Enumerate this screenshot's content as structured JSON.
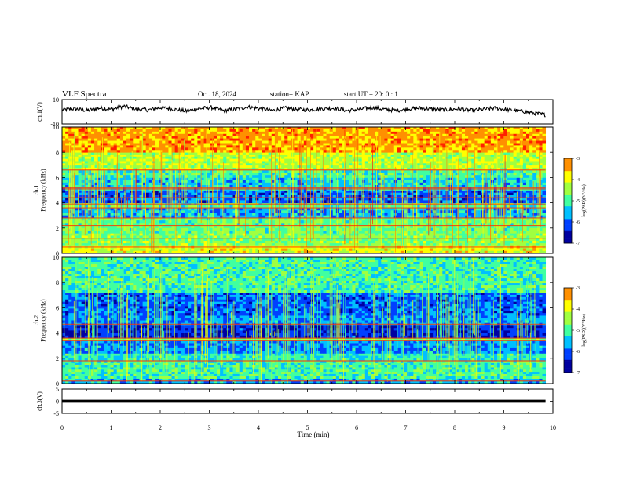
{
  "header": {
    "title": "VLF Spectra",
    "date": "Oct. 18, 2024",
    "station": "station= KAP",
    "start": "start  UT  =   20: 0  : 1"
  },
  "chart_data": [
    {
      "type": "line",
      "title": "",
      "ylabel": "ch.1(V)",
      "ylim": [
        -10,
        10
      ],
      "yticks": [
        10,
        -10
      ],
      "description_series": "time-domain waveform, noisy around ~2 V",
      "series": [
        {
          "values": [
            1.5,
            2.5,
            1.0,
            3.0,
            2.0,
            4.5,
            2.0,
            1.5,
            3.5,
            2.0,
            0.5,
            2.5,
            3.5,
            1.0,
            2.0,
            4.0,
            2.5,
            1.0,
            3.0,
            2.0,
            1.5,
            2.5,
            3.0,
            1.0,
            2.0,
            3.5,
            2.0,
            1.0,
            2.5,
            3.0,
            2.0,
            1.5,
            2.5,
            1.0,
            2.0,
            3.0,
            1.5,
            0.5,
            -1.0,
            -2.5
          ]
        }
      ]
    },
    {
      "type": "heatmap",
      "ylabel": "ch.1\nFrequency (kHz)",
      "ylim": [
        0,
        10
      ],
      "yticks": [
        0,
        2,
        4,
        6,
        8,
        10
      ],
      "xlim": [
        0,
        10
      ],
      "colorbar": {
        "label": "log(PSD)(V²/Hz)",
        "ticks": [
          -3,
          -4,
          -5,
          -6,
          -7
        ],
        "range": [
          -7,
          -3
        ]
      },
      "bands_khz": [
        {
          "from": 0.0,
          "to": 0.6,
          "level": -4.0
        },
        {
          "from": 0.6,
          "to": 1.6,
          "level": -4.6
        },
        {
          "from": 1.6,
          "to": 2.8,
          "level": -4.8
        },
        {
          "from": 2.8,
          "to": 3.6,
          "level": -5.6
        },
        {
          "from": 3.6,
          "to": 4.0,
          "level": -5.0
        },
        {
          "from": 4.0,
          "to": 5.0,
          "level": -6.0
        },
        {
          "from": 5.0,
          "to": 6.0,
          "level": -5.4
        },
        {
          "from": 6.0,
          "to": 6.6,
          "level": -5.0
        },
        {
          "from": 6.6,
          "to": 8.0,
          "level": -4.3
        },
        {
          "from": 8.0,
          "to": 10.0,
          "level": -3.4
        }
      ],
      "lines_khz": [
        0.5,
        1.2,
        2.2,
        2.8,
        3.6,
        3.9,
        4.4,
        5.1,
        5.2,
        6.6
      ]
    },
    {
      "type": "heatmap",
      "ylabel": "ch.2\nFrequency (kHz)",
      "ylim": [
        0,
        10
      ],
      "yticks": [
        0,
        2,
        4,
        6,
        8,
        10
      ],
      "xlim": [
        0,
        10
      ],
      "colorbar": {
        "label": "log(PSD)(V²/Hz)",
        "ticks": [
          -3,
          -4,
          -5,
          -6,
          -7
        ],
        "range": [
          -7,
          -3
        ]
      },
      "bands_khz": [
        {
          "from": 0.0,
          "to": 0.4,
          "level": -5.6
        },
        {
          "from": 0.4,
          "to": 1.8,
          "level": -5.0
        },
        {
          "from": 1.8,
          "to": 2.4,
          "level": -5.2
        },
        {
          "from": 2.4,
          "to": 3.4,
          "level": -5.8
        },
        {
          "from": 3.4,
          "to": 3.6,
          "level": -4.6
        },
        {
          "from": 3.6,
          "to": 4.6,
          "level": -6.4
        },
        {
          "from": 4.6,
          "to": 5.4,
          "level": -5.8
        },
        {
          "from": 5.4,
          "to": 7.2,
          "level": -6.0
        },
        {
          "from": 7.2,
          "to": 10.0,
          "level": -5.0
        }
      ],
      "lines_khz": [
        0.2,
        1.8,
        3.4,
        3.6,
        4.7
      ]
    },
    {
      "type": "line",
      "ylabel": "ch.3(V)",
      "ylim": [
        -5,
        5
      ],
      "yticks": [
        5,
        0,
        -5
      ],
      "series": [
        {
          "values": [
            0,
            0
          ]
        }
      ]
    }
  ],
  "xaxis": {
    "label": "Time  (min)",
    "ticks": [
      "0",
      "1",
      "2",
      "3",
      "4",
      "5",
      "6",
      "7",
      "8",
      "9",
      "10"
    ],
    "data_end_min": 9.85
  },
  "colors": {
    "scale": [
      "#0000a0",
      "#0040ff",
      "#00c0ff",
      "#40ffa0",
      "#a0ff40",
      "#ffff00",
      "#ff9000",
      "#ff2000",
      "#ffffff"
    ]
  }
}
